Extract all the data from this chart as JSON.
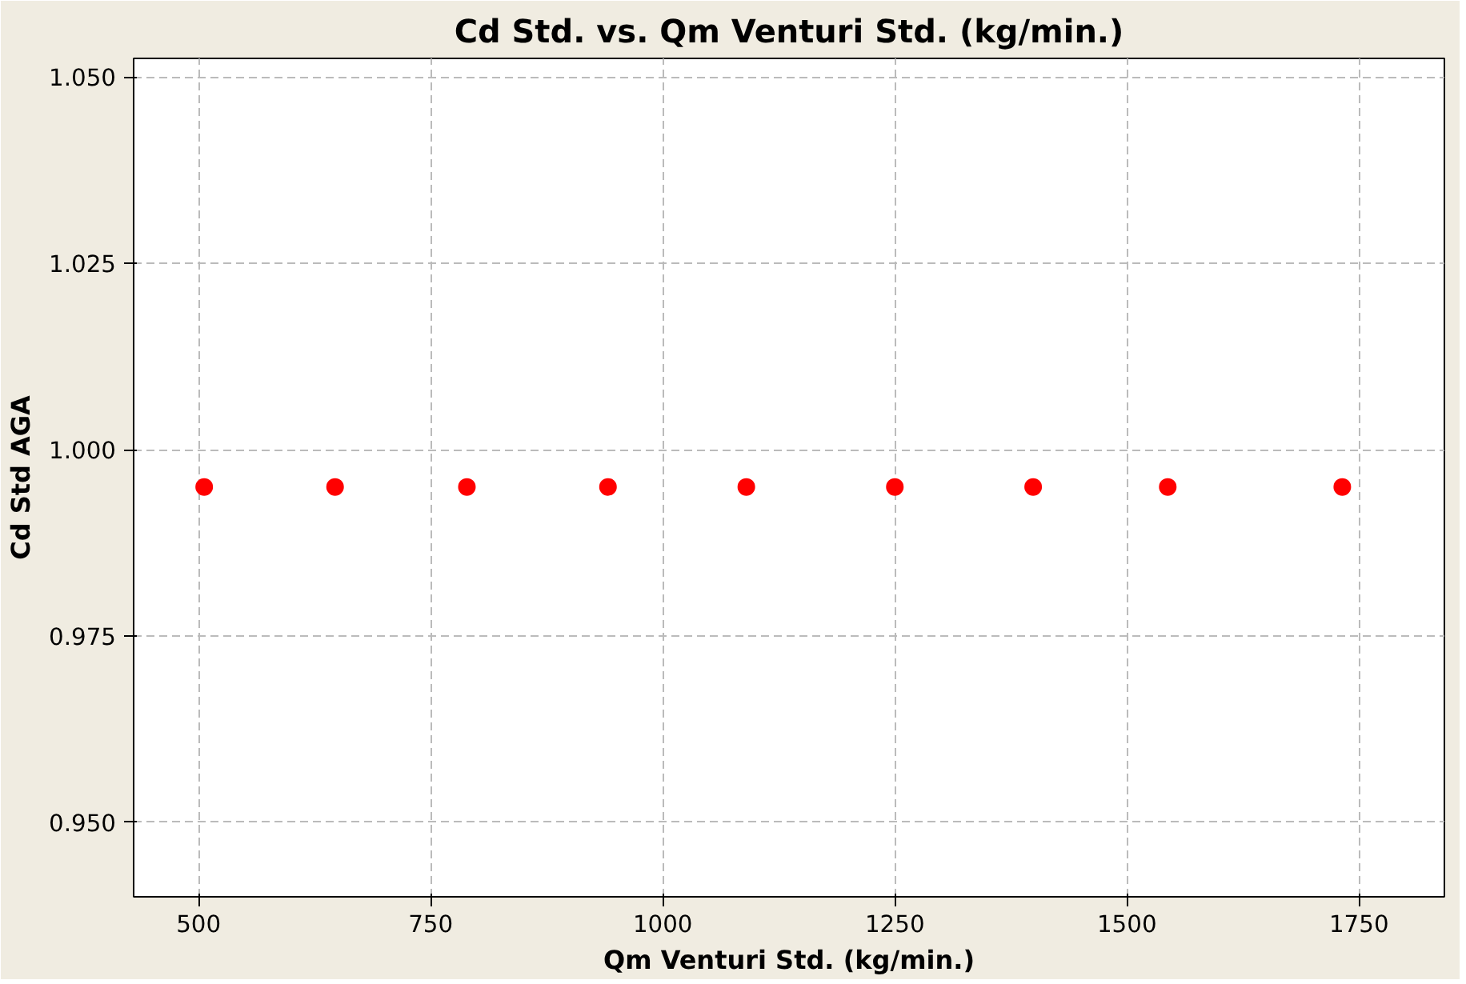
{
  "chart_data": {
    "type": "scatter",
    "title": "Cd Std. vs. Qm Venturi Std. (kg/min.)",
    "xlabel": "Qm Venturi Std. (kg/min.)",
    "ylabel": "Cd Std AGA",
    "x": [
      506,
      647,
      789,
      941,
      1090,
      1250,
      1399,
      1544,
      1732
    ],
    "series": [
      {
        "color": "#ff0000",
        "values": [
          0.995,
          0.995,
          0.995,
          0.995,
          0.995,
          0.995,
          0.995,
          0.995,
          0.995
        ]
      }
    ],
    "xlim": [
      430,
      1842
    ],
    "ylim": [
      0.94,
      1.0525
    ],
    "xticks": [
      500,
      750,
      1000,
      1250,
      1500,
      1750
    ],
    "yticks": [
      {
        "value": 0.95,
        "label": "0.950"
      },
      {
        "value": 0.975,
        "label": "0.975"
      },
      {
        "value": 1.0,
        "label": "1.000"
      },
      {
        "value": 1.025,
        "label": "1.025"
      },
      {
        "value": 1.05,
        "label": "1.050"
      }
    ],
    "grid": true,
    "marker": "circle"
  }
}
